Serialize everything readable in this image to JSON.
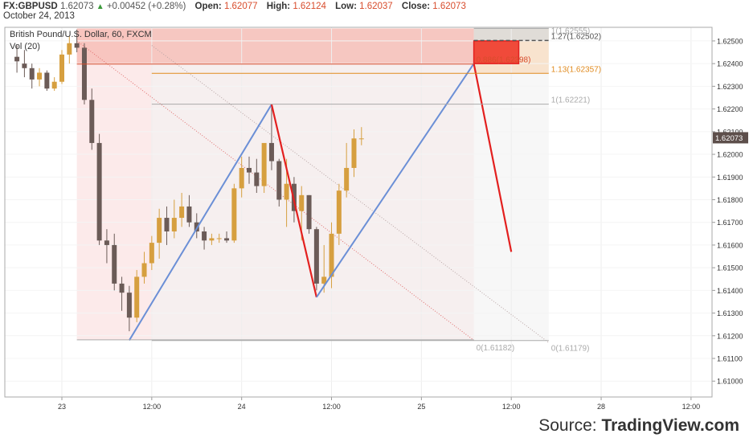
{
  "header": {
    "symbol": "FX:GBPUSD",
    "last": "1.62073",
    "change": "+0.00452 (+0.28%)",
    "open_label": "Open:",
    "open": "1.62077",
    "high_label": "High:",
    "high": "1.62124",
    "low_label": "Low:",
    "low": "1.62037",
    "close_label": "Close:",
    "close": "1.62073",
    "date": "October 24, 2013"
  },
  "legend": {
    "title": "British Pound/U.S. Dollar, 60, FXCM",
    "volume": "Vol (20)"
  },
  "source": {
    "prefix": "Source: ",
    "brand": "TradingView.com"
  },
  "colors": {
    "up": "#d69f3f",
    "down": "#6b5b57",
    "blue_line": "#6b8fd6",
    "red_line": "#e3201f",
    "price_tag": "#5d4f4b"
  },
  "chart_data": {
    "type": "candlestick",
    "symbol": "FX:GBPUSD",
    "interval": "60",
    "ylim": [
      1.6093,
      1.6256
    ],
    "y_ticks": [
      "1.62500",
      "1.62400",
      "1.62300",
      "1.62200",
      "1.62100",
      "1.62000",
      "1.61900",
      "1.61800",
      "1.61700",
      "1.61600",
      "1.61500",
      "1.61400",
      "1.61300",
      "1.61200",
      "1.61100",
      "1.61000"
    ],
    "x_ticks": [
      {
        "label": "23",
        "t": 0
      },
      {
        "label": "12:00",
        "t": 12
      },
      {
        "label": "24",
        "t": 24
      },
      {
        "label": "12:00",
        "t": 36
      },
      {
        "label": "25",
        "t": 48
      },
      {
        "label": "12:00",
        "t": 60
      },
      {
        "label": "28",
        "t": 72
      },
      {
        "label": "12:00",
        "t": 84
      }
    ],
    "last_price": "1.62073",
    "candles": [
      {
        "t": -6,
        "o": 1.6243,
        "h": 1.6248,
        "l": 1.6236,
        "c": 1.6241
      },
      {
        "t": -5,
        "o": 1.624,
        "h": 1.6246,
        "l": 1.6234,
        "c": 1.6238
      },
      {
        "t": -4,
        "o": 1.6238,
        "h": 1.624,
        "l": 1.6229,
        "c": 1.6233
      },
      {
        "t": -3,
        "o": 1.6233,
        "h": 1.6238,
        "l": 1.623,
        "c": 1.6236
      },
      {
        "t": -2,
        "o": 1.6236,
        "h": 1.6237,
        "l": 1.6228,
        "c": 1.6229
      },
      {
        "t": -1,
        "o": 1.6229,
        "h": 1.6234,
        "l": 1.6228,
        "c": 1.6232
      },
      {
        "t": 0,
        "o": 1.6232,
        "h": 1.6246,
        "l": 1.6231,
        "c": 1.6244
      },
      {
        "t": 1,
        "o": 1.6244,
        "h": 1.6252,
        "l": 1.624,
        "c": 1.6249
      },
      {
        "t": 2,
        "o": 1.6249,
        "h": 1.6255,
        "l": 1.6245,
        "c": 1.6247
      },
      {
        "t": 3,
        "o": 1.6247,
        "h": 1.6249,
        "l": 1.6222,
        "c": 1.6224
      },
      {
        "t": 4,
        "o": 1.6224,
        "h": 1.6229,
        "l": 1.6202,
        "c": 1.6205
      },
      {
        "t": 5,
        "o": 1.6205,
        "h": 1.6209,
        "l": 1.616,
        "c": 1.6162
      },
      {
        "t": 6,
        "o": 1.6162,
        "h": 1.6167,
        "l": 1.6152,
        "c": 1.616
      },
      {
        "t": 7,
        "o": 1.616,
        "h": 1.6165,
        "l": 1.614,
        "c": 1.6143
      },
      {
        "t": 8,
        "o": 1.6143,
        "h": 1.6146,
        "l": 1.6131,
        "c": 1.6139
      },
      {
        "t": 9,
        "o": 1.6139,
        "h": 1.6142,
        "l": 1.6122,
        "c": 1.6128
      },
      {
        "t": 10,
        "o": 1.6128,
        "h": 1.6149,
        "l": 1.6126,
        "c": 1.6146
      },
      {
        "t": 11,
        "o": 1.6146,
        "h": 1.6157,
        "l": 1.6143,
        "c": 1.6152
      },
      {
        "t": 12,
        "o": 1.6152,
        "h": 1.6164,
        "l": 1.6149,
        "c": 1.6161
      },
      {
        "t": 13,
        "o": 1.6161,
        "h": 1.6176,
        "l": 1.6154,
        "c": 1.6172
      },
      {
        "t": 14,
        "o": 1.6172,
        "h": 1.6177,
        "l": 1.616,
        "c": 1.6166
      },
      {
        "t": 15,
        "o": 1.6166,
        "h": 1.618,
        "l": 1.6163,
        "c": 1.6172
      },
      {
        "t": 16,
        "o": 1.6172,
        "h": 1.6183,
        "l": 1.6168,
        "c": 1.6177
      },
      {
        "t": 17,
        "o": 1.6177,
        "h": 1.6182,
        "l": 1.6168,
        "c": 1.617
      },
      {
        "t": 18,
        "o": 1.617,
        "h": 1.6174,
        "l": 1.6163,
        "c": 1.6166
      },
      {
        "t": 19,
        "o": 1.6166,
        "h": 1.6168,
        "l": 1.6158,
        "c": 1.6162
      },
      {
        "t": 20,
        "o": 1.6162,
        "h": 1.6165,
        "l": 1.616,
        "c": 1.6163
      },
      {
        "t": 21,
        "o": 1.6163,
        "h": 1.6165,
        "l": 1.6161,
        "c": 1.6163
      },
      {
        "t": 22,
        "o": 1.6163,
        "h": 1.6166,
        "l": 1.6161,
        "c": 1.6162
      },
      {
        "t": 23,
        "o": 1.6162,
        "h": 1.6187,
        "l": 1.6161,
        "c": 1.6185
      },
      {
        "t": 24,
        "o": 1.6185,
        "h": 1.6199,
        "l": 1.6181,
        "c": 1.6194
      },
      {
        "t": 25,
        "o": 1.6194,
        "h": 1.6199,
        "l": 1.6187,
        "c": 1.6192
      },
      {
        "t": 26,
        "o": 1.6192,
        "h": 1.6198,
        "l": 1.6183,
        "c": 1.6186
      },
      {
        "t": 27,
        "o": 1.6186,
        "h": 1.6204,
        "l": 1.6183,
        "c": 1.6205
      },
      {
        "t": 28,
        "o": 1.6205,
        "h": 1.6221,
        "l": 1.6193,
        "c": 1.6197
      },
      {
        "t": 29,
        "o": 1.6197,
        "h": 1.6198,
        "l": 1.6177,
        "c": 1.618
      },
      {
        "t": 30,
        "o": 1.618,
        "h": 1.6198,
        "l": 1.6168,
        "c": 1.6187
      },
      {
        "t": 31,
        "o": 1.6187,
        "h": 1.619,
        "l": 1.617,
        "c": 1.6175
      },
      {
        "t": 32,
        "o": 1.6175,
        "h": 1.6186,
        "l": 1.6162,
        "c": 1.6182
      },
      {
        "t": 33,
        "o": 1.6182,
        "h": 1.6182,
        "l": 1.6165,
        "c": 1.6167
      },
      {
        "t": 34,
        "o": 1.6167,
        "h": 1.6168,
        "l": 1.614,
        "c": 1.6143
      },
      {
        "t": 35,
        "o": 1.6143,
        "h": 1.616,
        "l": 1.6139,
        "c": 1.6146
      },
      {
        "t": 36,
        "o": 1.6146,
        "h": 1.617,
        "l": 1.6141,
        "c": 1.6165
      },
      {
        "t": 37,
        "o": 1.6165,
        "h": 1.6187,
        "l": 1.616,
        "c": 1.6184
      },
      {
        "t": 38,
        "o": 1.6184,
        "h": 1.6205,
        "l": 1.6181,
        "c": 1.6194
      },
      {
        "t": 39,
        "o": 1.6194,
        "h": 1.6211,
        "l": 1.619,
        "c": 1.6207
      },
      {
        "t": 40,
        "o": 1.6207,
        "h": 1.6212,
        "l": 1.6204,
        "c": 1.6207
      }
    ],
    "fib_zones": [
      {
        "name": "fib-projection-1",
        "t0": 2,
        "t1": 55,
        "p_top": 1.62555,
        "p_bottom": 1.61182
      },
      {
        "name": "fib-projection-2",
        "t0": 12,
        "t1": 65,
        "p_top": 1.62555,
        "p_bottom": 1.61179
      }
    ],
    "fib_levels": [
      {
        "label": "1(1.62555)",
        "price": 1.62555,
        "t0": 55,
        "t1": 65,
        "color": "#aaaaaa"
      },
      {
        "label": "1.27(1.62502)",
        "price": 1.62502,
        "t0": 55,
        "t1": 65,
        "color": "#555555"
      },
      {
        "label": "0.886(1.62398)",
        "price": 1.62398,
        "t0": 2,
        "t1": 55,
        "color": "#d84c2c"
      },
      {
        "label": "1.13(1.62357)",
        "price": 1.62357,
        "t0": 12,
        "t1": 65,
        "color": "#e08a1e"
      },
      {
        "label": "1(1.62221)",
        "price": 1.62221,
        "t0": 12,
        "t1": 65,
        "color": "#aaaaaa"
      },
      {
        "label": "0(1.61182)",
        "price": 1.61182,
        "t0": 2,
        "t1": 55,
        "color": "#aaaaaa"
      },
      {
        "label": "0(1.61179)",
        "price": 1.61179,
        "t0": 12,
        "t1": 65,
        "color": "#aaaaaa"
      }
    ],
    "pattern": [
      {
        "t": 9,
        "p": 1.6118,
        "color": "blue"
      },
      {
        "t": 28,
        "p": 1.6222,
        "color": "red"
      },
      {
        "t": 34,
        "p": 1.6137,
        "color": "blue"
      },
      {
        "t": 55,
        "p": 1.624,
        "color": "red"
      },
      {
        "t": 60,
        "p": 1.6157,
        "color": "end"
      }
    ],
    "prz_box": {
      "t0": 55,
      "t1": 61,
      "p_top": 1.625,
      "p_bottom": 1.624
    },
    "trend_lines": [
      {
        "t0": 2,
        "p0": 1.625,
        "t1": 55,
        "p1": 1.6118
      },
      {
        "t0": 12,
        "p0": 1.6248,
        "t1": 65,
        "p1": 1.6117
      }
    ]
  }
}
